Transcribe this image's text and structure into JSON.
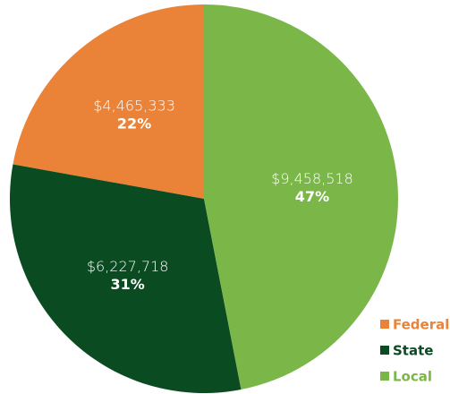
{
  "chart_data": {
    "type": "pie",
    "categories": [
      "Federal",
      "State",
      "Local"
    ],
    "values": [
      4465333,
      6227718,
      9458518
    ],
    "value_labels": [
      "$4,465,333",
      "$6,227,718",
      "$9,458,518"
    ],
    "percentages": [
      22,
      31,
      47
    ],
    "percentage_labels": [
      "22%",
      "31%",
      "47%"
    ],
    "colors": [
      "#ea8337",
      "#0a4b22",
      "#7ab648"
    ],
    "legend": "bottom-right"
  }
}
